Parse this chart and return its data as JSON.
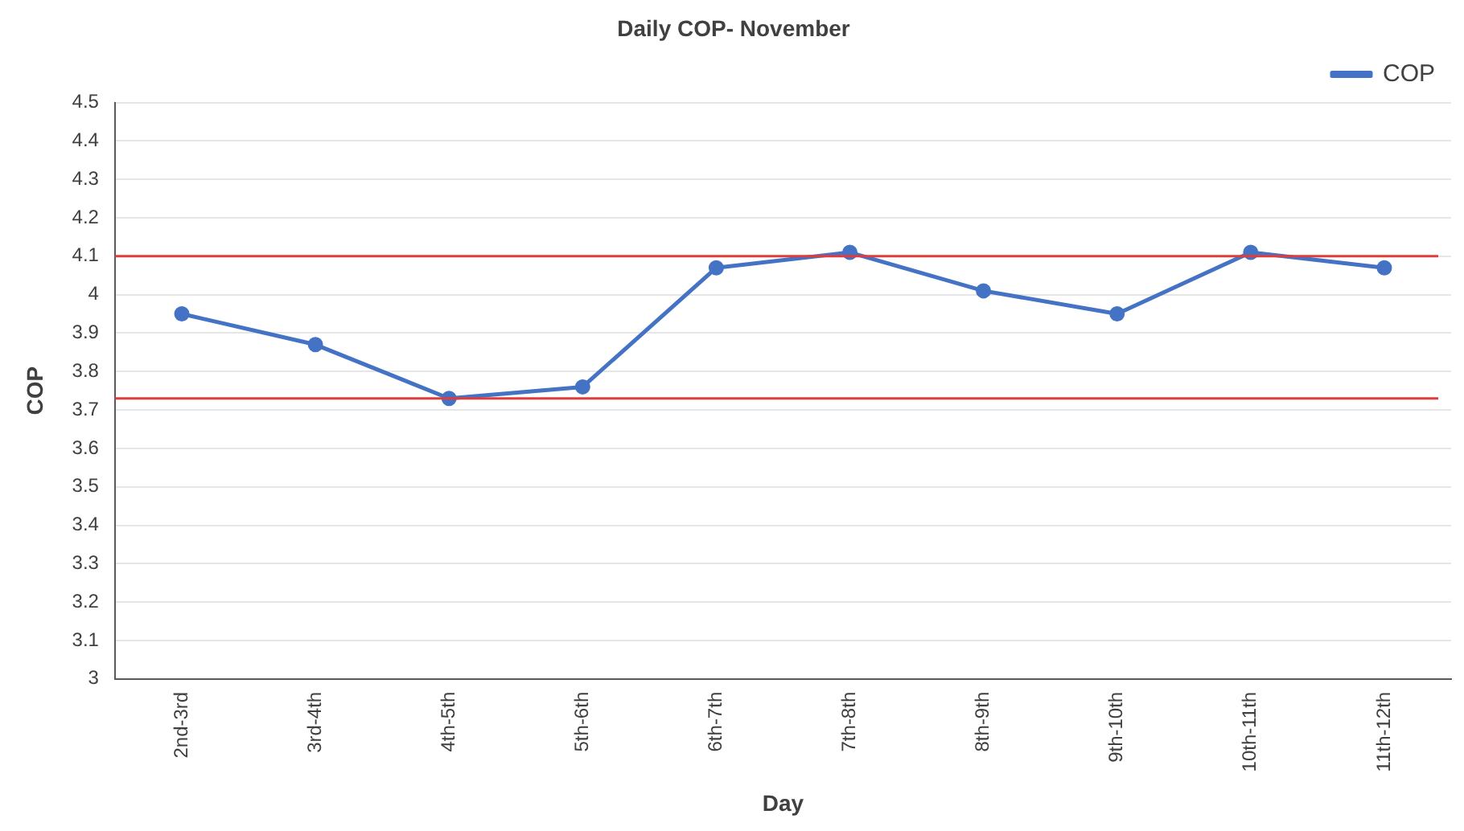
{
  "chart_data": {
    "type": "line",
    "title": "Daily COP- November",
    "xlabel": "Day",
    "ylabel": "COP",
    "categories": [
      "2nd-3rd",
      "3rd-4th",
      "4th-5th",
      "5th-6th",
      "6th-7th",
      "7th-8th",
      "8th-9th",
      "9th-10th",
      "10th-11th",
      "11th-12th"
    ],
    "series": [
      {
        "name": "COP",
        "color": "#4472c4",
        "values": [
          3.95,
          3.87,
          3.73,
          3.76,
          4.07,
          4.11,
          4.01,
          3.95,
          4.11,
          4.07
        ]
      }
    ],
    "ylim": [
      3,
      4.5
    ],
    "yticks": [
      3,
      3.1,
      3.2,
      3.3,
      3.4,
      3.5,
      3.6,
      3.7,
      3.8,
      3.9,
      4,
      4.1,
      4.2,
      4.3,
      4.4,
      4.5
    ],
    "ref_lines": [
      {
        "axis": "y",
        "value": 4.1,
        "color": "#e03c3c"
      },
      {
        "axis": "y",
        "value": 3.73,
        "color": "#e03c3c"
      }
    ],
    "grid": "y",
    "legend": "top right",
    "marker": "circle",
    "line_style": "solid"
  }
}
